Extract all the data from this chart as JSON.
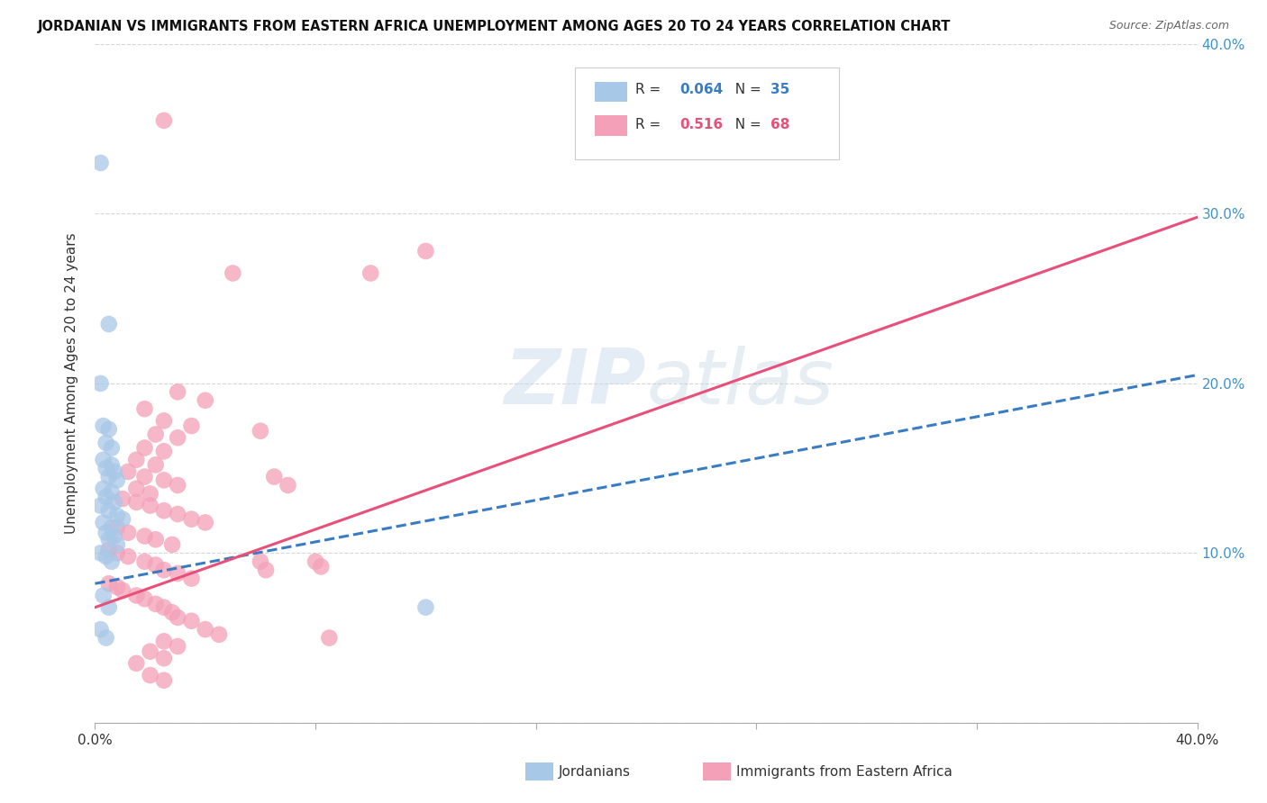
{
  "title": "JORDANIAN VS IMMIGRANTS FROM EASTERN AFRICA UNEMPLOYMENT AMONG AGES 20 TO 24 YEARS CORRELATION CHART",
  "source": "Source: ZipAtlas.com",
  "ylabel": "Unemployment Among Ages 20 to 24 years",
  "xlim": [
    0.0,
    0.4
  ],
  "ylim": [
    0.0,
    0.4
  ],
  "watermark": "ZIPatlas",
  "blue_color": "#a8c8e8",
  "pink_color": "#f4a0b8",
  "blue_line_color": "#3a7cc4",
  "pink_line_color": "#e8507a",
  "blue_line": [
    [
      0.0,
      0.082
    ],
    [
      0.4,
      0.205
    ]
  ],
  "pink_line": [
    [
      0.0,
      0.068
    ],
    [
      0.4,
      0.298
    ]
  ],
  "blue_scatter": [
    [
      0.002,
      0.33
    ],
    [
      0.005,
      0.235
    ],
    [
      0.002,
      0.2
    ],
    [
      0.003,
      0.175
    ],
    [
      0.005,
      0.173
    ],
    [
      0.004,
      0.165
    ],
    [
      0.006,
      0.162
    ],
    [
      0.003,
      0.155
    ],
    [
      0.006,
      0.152
    ],
    [
      0.004,
      0.15
    ],
    [
      0.007,
      0.148
    ],
    [
      0.005,
      0.145
    ],
    [
      0.008,
      0.143
    ],
    [
      0.003,
      0.138
    ],
    [
      0.006,
      0.136
    ],
    [
      0.004,
      0.133
    ],
    [
      0.007,
      0.13
    ],
    [
      0.002,
      0.128
    ],
    [
      0.005,
      0.125
    ],
    [
      0.008,
      0.122
    ],
    [
      0.01,
      0.12
    ],
    [
      0.003,
      0.118
    ],
    [
      0.006,
      0.115
    ],
    [
      0.004,
      0.112
    ],
    [
      0.007,
      0.11
    ],
    [
      0.005,
      0.108
    ],
    [
      0.008,
      0.105
    ],
    [
      0.002,
      0.1
    ],
    [
      0.004,
      0.098
    ],
    [
      0.006,
      0.095
    ],
    [
      0.003,
      0.075
    ],
    [
      0.005,
      0.068
    ],
    [
      0.002,
      0.055
    ],
    [
      0.004,
      0.05
    ],
    [
      0.12,
      0.068
    ]
  ],
  "pink_scatter": [
    [
      0.025,
      0.355
    ],
    [
      0.05,
      0.265
    ],
    [
      0.12,
      0.278
    ],
    [
      0.1,
      0.265
    ],
    [
      0.03,
      0.195
    ],
    [
      0.04,
      0.19
    ],
    [
      0.018,
      0.185
    ],
    [
      0.025,
      0.178
    ],
    [
      0.035,
      0.175
    ],
    [
      0.022,
      0.17
    ],
    [
      0.03,
      0.168
    ],
    [
      0.018,
      0.162
    ],
    [
      0.025,
      0.16
    ],
    [
      0.015,
      0.155
    ],
    [
      0.022,
      0.152
    ],
    [
      0.012,
      0.148
    ],
    [
      0.018,
      0.145
    ],
    [
      0.025,
      0.143
    ],
    [
      0.03,
      0.14
    ],
    [
      0.015,
      0.138
    ],
    [
      0.02,
      0.135
    ],
    [
      0.06,
      0.172
    ],
    [
      0.01,
      0.132
    ],
    [
      0.015,
      0.13
    ],
    [
      0.02,
      0.128
    ],
    [
      0.025,
      0.125
    ],
    [
      0.03,
      0.123
    ],
    [
      0.035,
      0.12
    ],
    [
      0.04,
      0.118
    ],
    [
      0.008,
      0.115
    ],
    [
      0.012,
      0.112
    ],
    [
      0.018,
      0.11
    ],
    [
      0.022,
      0.108
    ],
    [
      0.028,
      0.105
    ],
    [
      0.005,
      0.102
    ],
    [
      0.008,
      0.1
    ],
    [
      0.012,
      0.098
    ],
    [
      0.018,
      0.095
    ],
    [
      0.022,
      0.093
    ],
    [
      0.025,
      0.09
    ],
    [
      0.03,
      0.088
    ],
    [
      0.035,
      0.085
    ],
    [
      0.005,
      0.082
    ],
    [
      0.008,
      0.08
    ],
    [
      0.01,
      0.078
    ],
    [
      0.015,
      0.075
    ],
    [
      0.018,
      0.073
    ],
    [
      0.022,
      0.07
    ],
    [
      0.025,
      0.068
    ],
    [
      0.028,
      0.065
    ],
    [
      0.06,
      0.095
    ],
    [
      0.062,
      0.09
    ],
    [
      0.03,
      0.062
    ],
    [
      0.035,
      0.06
    ],
    [
      0.04,
      0.055
    ],
    [
      0.045,
      0.052
    ],
    [
      0.025,
      0.048
    ],
    [
      0.03,
      0.045
    ],
    [
      0.02,
      0.042
    ],
    [
      0.025,
      0.038
    ],
    [
      0.015,
      0.035
    ],
    [
      0.02,
      0.028
    ],
    [
      0.025,
      0.025
    ],
    [
      0.08,
      0.095
    ],
    [
      0.082,
      0.092
    ],
    [
      0.085,
      0.05
    ],
    [
      0.065,
      0.145
    ],
    [
      0.07,
      0.14
    ]
  ],
  "background_color": "#ffffff",
  "grid_color": "#cccccc"
}
